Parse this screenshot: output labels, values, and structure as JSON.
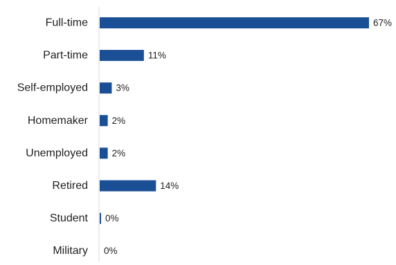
{
  "chart_data": {
    "type": "bar",
    "orientation": "horizontal",
    "categories": [
      "Full-time",
      "Part-time",
      "Self-employed",
      "Homemaker",
      "Unemployed",
      "Retired",
      "Student",
      "Military"
    ],
    "values": [
      67,
      11,
      3,
      2,
      2,
      14,
      0,
      0
    ],
    "value_labels": [
      "67%",
      "11%",
      "3%",
      "2%",
      "2%",
      "14%",
      "0%",
      "0%"
    ],
    "value_unit": "%",
    "xlim": [
      0,
      67
    ],
    "title": "",
    "xlabel": "",
    "ylabel": "",
    "grid": false,
    "legend": "none",
    "bar_color": "#1b4f95",
    "axis_color": "#d9d9d9"
  }
}
